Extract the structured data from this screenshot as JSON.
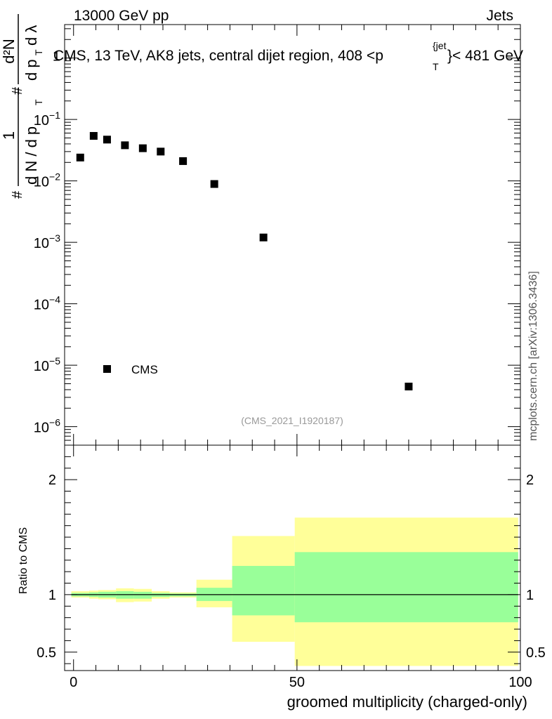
{
  "header": {
    "energy_label": "13000 GeV pp",
    "category_label": "Jets",
    "side_label": "mcplots.cern.ch [arXiv:1306.3436]"
  },
  "colors": {
    "band_outer": "#ffff99",
    "band_inner": "#99ff99",
    "marker": "#000000"
  },
  "chart_data": [
    {
      "type": "scatter",
      "title": "CMS, 13 TeV, AK8 jets, central dijet region, 408 <p_T^{jet}< 481 GeV",
      "title_parts": {
        "prefix": "CMS, 13 TeV, AK8 jets, central dijet region, 408 <p",
        "sup": "{jet",
        "sub": "T",
        "suffix": "}< 481 GeV"
      },
      "ylabel": "1/(dN/dp_T) d²N/(dp_T dλ)",
      "ylabel_parts": {
        "one": "1",
        "hash": "#",
        "num": "d²N",
        "den_left": "d N / d p",
        "den_right": "d p",
        "dl": "d λ",
        "T": "T"
      },
      "yscale": "log",
      "ylim": [
        5e-07,
        3.5
      ],
      "xlim": [
        -2,
        100
      ],
      "yticks": [
        {
          "v": 1e-06,
          "base": "10",
          "exp": "−6"
        },
        {
          "v": 1e-05,
          "base": "10",
          "exp": "−5"
        },
        {
          "v": 0.0001,
          "base": "10",
          "exp": "−4"
        },
        {
          "v": 0.001,
          "base": "10",
          "exp": "−3"
        },
        {
          "v": 0.01,
          "base": "10",
          "exp": "−2"
        },
        {
          "v": 0.1,
          "base": "10",
          "exp": "−1"
        },
        {
          "v": 1,
          "base": "1",
          "exp": ""
        }
      ],
      "series": [
        {
          "name": "CMS",
          "x": [
            1.5,
            4.5,
            7.5,
            11.5,
            15.5,
            19.5,
            24.5,
            31.5,
            42.5,
            75
          ],
          "values": [
            0.024,
            0.054,
            0.047,
            0.038,
            0.034,
            0.03,
            0.021,
            0.0089,
            0.0012,
            4.5e-06
          ]
        }
      ],
      "legend": {
        "position": "bottom-left",
        "entries": [
          "CMS"
        ]
      },
      "annotation": "(CMS_2021_I1920187)"
    },
    {
      "type": "area",
      "ylabel": "Ratio to CMS",
      "xlabel": "groomed multiplicity (charged-only)",
      "xlim": [
        -2,
        100
      ],
      "ylim": [
        0.34,
        2.3
      ],
      "xticks": [
        0,
        50,
        100
      ],
      "yticks": [
        0.5,
        1,
        2
      ],
      "reference_line": 1,
      "bins": [
        {
          "x0": -0.5,
          "x1": 3.5,
          "inner": [
            0.985,
            1.015
          ],
          "outer": [
            0.975,
            1.03
          ]
        },
        {
          "x0": 3.5,
          "x1": 5.5,
          "inner": [
            0.98,
            1.02
          ],
          "outer": [
            0.965,
            1.035
          ]
        },
        {
          "x0": 5.5,
          "x1": 9.5,
          "inner": [
            0.975,
            1.025
          ],
          "outer": [
            0.96,
            1.04
          ]
        },
        {
          "x0": 9.5,
          "x1": 13.5,
          "inner": [
            0.965,
            1.03
          ],
          "outer": [
            0.935,
            1.055
          ]
        },
        {
          "x0": 13.5,
          "x1": 17.5,
          "inner": [
            0.965,
            1.025
          ],
          "outer": [
            0.94,
            1.05
          ]
        },
        {
          "x0": 17.5,
          "x1": 21.5,
          "inner": [
            0.98,
            1.015
          ],
          "outer": [
            0.965,
            1.03
          ]
        },
        {
          "x0": 21.5,
          "x1": 27.5,
          "inner": [
            0.985,
            1.01
          ],
          "outer": [
            0.975,
            1.02
          ]
        },
        {
          "x0": 27.5,
          "x1": 35.5,
          "inner": [
            0.945,
            1.06
          ],
          "outer": [
            0.89,
            1.13
          ]
        },
        {
          "x0": 35.5,
          "x1": 49.5,
          "inner": [
            0.82,
            1.25
          ],
          "outer": [
            0.59,
            1.51
          ]
        },
        {
          "x0": 49.5,
          "x1": 99.5,
          "inner": [
            0.76,
            1.37
          ],
          "outer": [
            0.38,
            1.67
          ]
        }
      ]
    }
  ]
}
